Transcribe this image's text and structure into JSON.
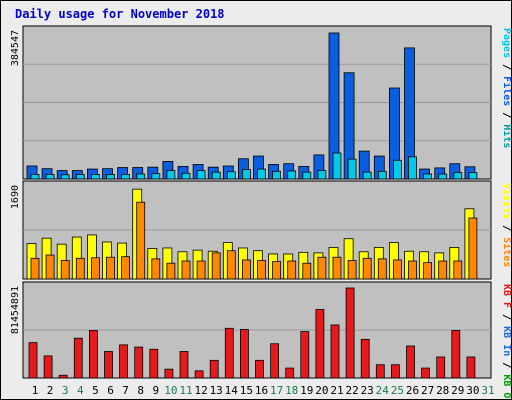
{
  "title": "Daily usage for November 2018",
  "colors": {
    "background": "#ececec",
    "panel": "#c0c0c0",
    "gridline": "#9a9a9a",
    "pages": "#00c8e6",
    "files": "#0a5ee0",
    "hits": "#00a0a0",
    "visits": "#ffff00",
    "sites": "#ff8800",
    "kbin": "#1a6ed8",
    "kbout": "#00a000",
    "kbf": "#e61a1a",
    "weekday_label": "#000000",
    "weekend_label": "#1a7a4a"
  },
  "chart_data": [
    {
      "type": "bar",
      "panel": "top",
      "y_max_label": "384547",
      "ylim": [
        0,
        384547
      ],
      "legend": [
        {
          "name": "Pages",
          "color_key": "pages"
        },
        {
          "name": "Files",
          "color_key": "files"
        },
        {
          "name": "Hits",
          "color_key": "hits"
        }
      ],
      "categories": [
        "1",
        "2",
        "3",
        "4",
        "5",
        "6",
        "7",
        "8",
        "9",
        "10",
        "11",
        "12",
        "13",
        "14",
        "15",
        "16",
        "17",
        "18",
        "19",
        "20",
        "21",
        "22",
        "23",
        "24",
        "25",
        "26",
        "27",
        "28",
        "29",
        "30",
        "31"
      ],
      "series": [
        {
          "name": "Hits",
          "values": [
            36000,
            29000,
            24000,
            24000,
            28000,
            29000,
            32000,
            32000,
            33000,
            48000,
            35000,
            40000,
            33000,
            36000,
            55000,
            62000,
            40000,
            42000,
            35000,
            65000,
            384547,
            280000,
            75000,
            62000,
            240000,
            345000,
            28000,
            31000,
            42000,
            34000,
            0
          ]
        },
        {
          "name": "Files",
          "values": [
            34000,
            27000,
            22000,
            22000,
            26000,
            27000,
            30000,
            30000,
            31000,
            46000,
            33000,
            38000,
            31000,
            34000,
            53000,
            60000,
            38000,
            40000,
            33000,
            63000,
            382000,
            278000,
            73000,
            60000,
            238000,
            343000,
            26000,
            29000,
            40000,
            32000,
            0
          ]
        },
        {
          "name": "Pages",
          "values": [
            12000,
            12000,
            11000,
            12000,
            12000,
            12000,
            12000,
            13000,
            14000,
            22000,
            15000,
            22000,
            18000,
            19000,
            25000,
            26000,
            20000,
            21000,
            18000,
            22000,
            68000,
            52000,
            18000,
            20000,
            49000,
            58000,
            13000,
            13000,
            17000,
            17000,
            0
          ]
        }
      ]
    },
    {
      "type": "bar",
      "panel": "middle",
      "y_max_label": "1690",
      "ylim": [
        0,
        1690
      ],
      "legend": [
        {
          "name": "Visits",
          "color_key": "visits"
        },
        {
          "name": "Sites",
          "color_key": "sites"
        }
      ],
      "categories": [
        "1",
        "2",
        "3",
        "4",
        "5",
        "6",
        "7",
        "8",
        "9",
        "10",
        "11",
        "12",
        "13",
        "14",
        "15",
        "16",
        "17",
        "18",
        "19",
        "20",
        "21",
        "22",
        "23",
        "24",
        "25",
        "26",
        "27",
        "28",
        "29",
        "30",
        "31"
      ],
      "series": [
        {
          "name": "Visits",
          "values": [
            650,
            750,
            640,
            770,
            810,
            680,
            660,
            1650,
            560,
            570,
            500,
            530,
            510,
            670,
            570,
            520,
            460,
            460,
            490,
            480,
            580,
            740,
            500,
            580,
            670,
            510,
            500,
            480,
            580,
            1290,
            0
          ]
        },
        {
          "name": "Sites",
          "values": [
            380,
            440,
            340,
            380,
            390,
            400,
            410,
            1410,
            370,
            290,
            330,
            330,
            480,
            520,
            350,
            340,
            320,
            330,
            290,
            400,
            400,
            340,
            380,
            370,
            350,
            330,
            300,
            330,
            330,
            1120,
            0
          ]
        }
      ]
    },
    {
      "type": "bar",
      "panel": "bottom",
      "y_max_label": "81454891",
      "ylim": [
        0,
        81454891
      ],
      "legend": [
        {
          "name": "KB F",
          "color_key": "kbf"
        },
        {
          "name": "KB In",
          "color_key": "kbin"
        },
        {
          "name": "KB Out",
          "color_key": "kbout"
        }
      ],
      "categories": [
        "1",
        "2",
        "3",
        "4",
        "5",
        "6",
        "7",
        "8",
        "9",
        "10",
        "11",
        "12",
        "13",
        "14",
        "15",
        "16",
        "17",
        "18",
        "19",
        "20",
        "21",
        "22",
        "23",
        "24",
        "25",
        "26",
        "27",
        "28",
        "29",
        "30",
        "31"
      ],
      "series": [
        {
          "name": "KB F",
          "values": [
            32000000,
            20000000,
            2500000,
            36000000,
            43000000,
            24000000,
            30000000,
            28000000,
            26000000,
            8000000,
            24000000,
            6500000,
            16000000,
            45000000,
            44000000,
            16000000,
            31000000,
            9000000,
            42000000,
            62000000,
            48000000,
            81454891,
            35000000,
            12000000,
            12000000,
            29000000,
            9000000,
            19000000,
            43000000,
            19000000,
            0
          ]
        }
      ]
    }
  ],
  "weekend_days": [
    "3",
    "4",
    "10",
    "11",
    "17",
    "18",
    "24",
    "25",
    "31"
  ]
}
